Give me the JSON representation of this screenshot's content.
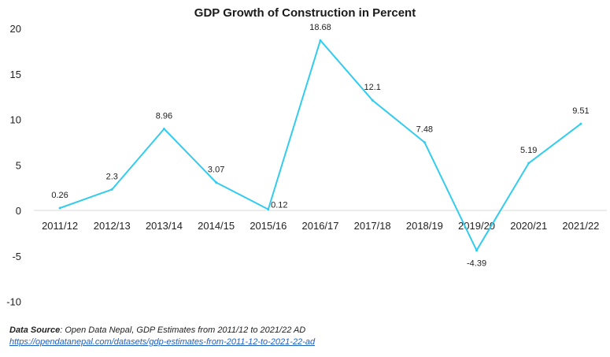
{
  "chart_data": {
    "type": "line",
    "title": "GDP Growth of Construction in Percent",
    "xlabel": "",
    "ylabel": "",
    "categories": [
      "2011/12",
      "2012/13",
      "2013/14",
      "2014/15",
      "2015/16",
      "2016/17",
      "2017/18",
      "2018/19",
      "2019/20",
      "2020/21",
      "2021/22"
    ],
    "values": [
      0.26,
      2.3,
      8.96,
      3.07,
      0.12,
      18.68,
      12.1,
      7.48,
      -4.39,
      5.19,
      9.51
    ],
    "value_labels": [
      "0.26",
      "2.3",
      "8.96",
      "3.07",
      "0.12",
      "18.68",
      "12.1",
      "7.48",
      "-4.39",
      "5.19",
      "9.51"
    ],
    "y_ticks": [
      20,
      15,
      10,
      5,
      0,
      -5,
      -10
    ],
    "ylim": [
      -10,
      20
    ],
    "grid": false,
    "legend": "none",
    "line_color": "#33ccee"
  },
  "source": {
    "heading": "Data Source",
    "text": ": Open Data Nepal,  GDP Estimates from 2011/12 to 2021/22 AD",
    "link": "https://opendatanepal.com/datasets/gdp-estimates-from-2011-12-to-2021-22-ad"
  }
}
